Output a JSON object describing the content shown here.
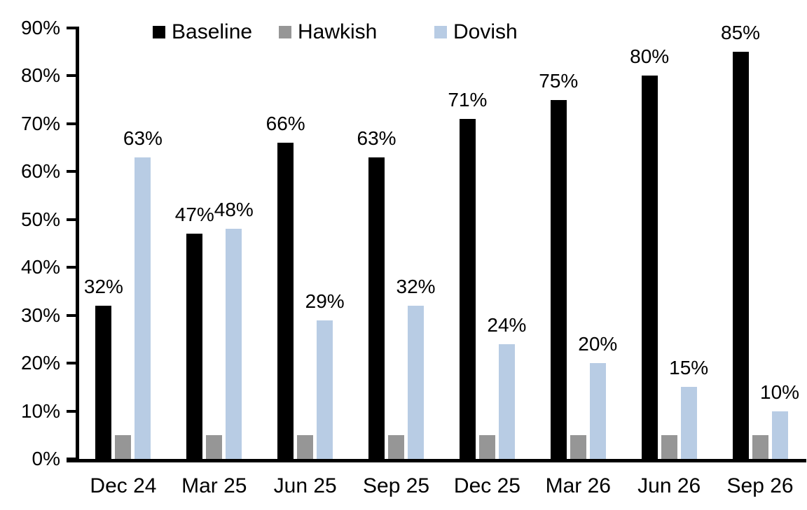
{
  "chart_data": {
    "type": "bar",
    "title": "",
    "xlabel": "",
    "ylabel": "",
    "categories": [
      "Dec 24",
      "Mar 25",
      "Jun 25",
      "Sep 25",
      "Dec 25",
      "Mar 26",
      "Jun 26",
      "Sep 26"
    ],
    "series": [
      {
        "name": "Baseline",
        "color": "#000000",
        "values": [
          32,
          47,
          66,
          63,
          71,
          75,
          80,
          85
        ],
        "data_labels": [
          "32%",
          "47%",
          "66%",
          "63%",
          "71%",
          "75%",
          "80%",
          "85%"
        ],
        "labels_shown": true
      },
      {
        "name": "Hawkish",
        "color": "#969696",
        "values": [
          5,
          5,
          5,
          5,
          5,
          5,
          5,
          5
        ],
        "data_labels": [
          "",
          "",
          "",
          "",
          "",
          "",
          "",
          ""
        ],
        "labels_shown": false
      },
      {
        "name": "Dovish",
        "color": "#B8CCE4",
        "values": [
          63,
          48,
          29,
          32,
          24,
          20,
          15,
          10
        ],
        "data_labels": [
          "63%",
          "48%",
          "29%",
          "32%",
          "24%",
          "20%",
          "15%",
          "10%"
        ],
        "labels_shown": true
      }
    ],
    "ylim": [
      0,
      90
    ],
    "ytick_step": 10,
    "ytick_labels": [
      "0%",
      "10%",
      "20%",
      "30%",
      "40%",
      "50%",
      "60%",
      "70%",
      "80%",
      "90%"
    ],
    "grid": false,
    "legend_position": "top",
    "background_color": "#FFFFFF",
    "axis_color": "#000000"
  }
}
